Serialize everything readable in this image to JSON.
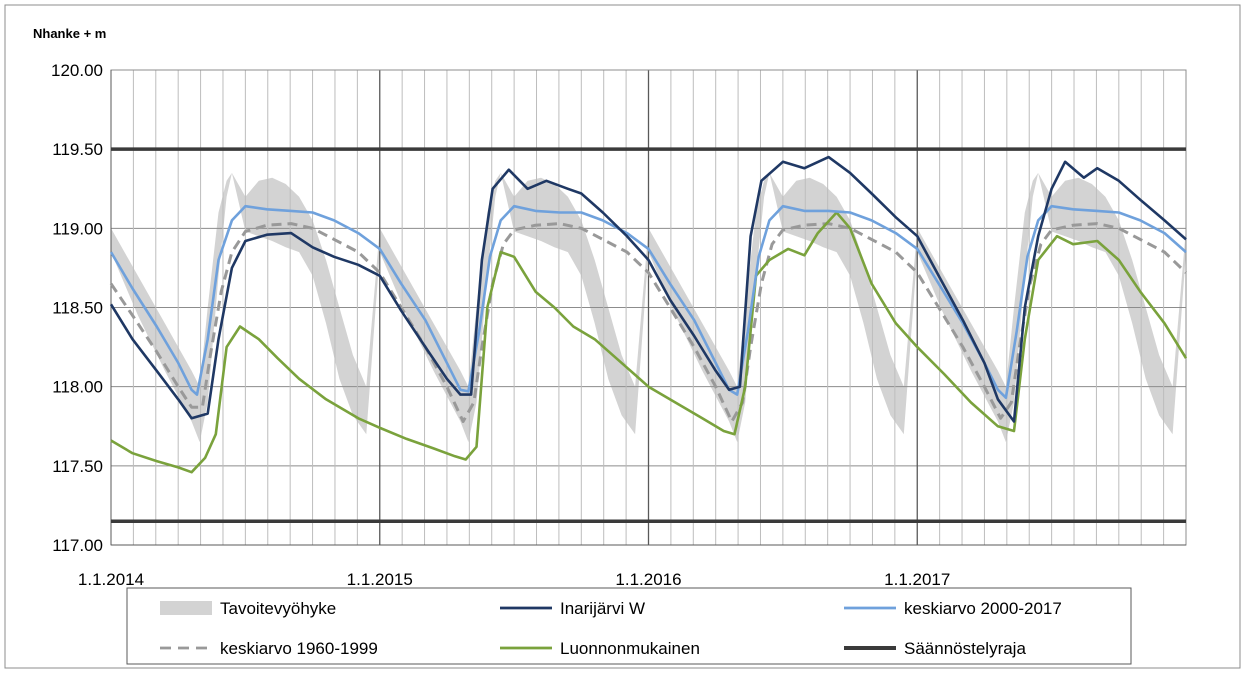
{
  "chart_data": {
    "type": "line",
    "ylabel": "Nhanke + m",
    "ylim": [
      117.0,
      120.0
    ],
    "yticks": [
      "117.00",
      "117.50",
      "118.00",
      "118.50",
      "119.00",
      "119.50",
      "120.00"
    ],
    "xlim": [
      "2014-01-01",
      "2018-01-01"
    ],
    "xticks": [
      "1.1.2014",
      "1.1.2015",
      "1.1.2016",
      "1.1.2017"
    ],
    "grid": {
      "monthly_vertical": true,
      "yearly_vertical": true,
      "horizontal": true
    },
    "legend_position": "bottom",
    "band": {
      "name": "Tavoitevyöhyke",
      "color": "#d3d3d3",
      "lower": [
        [
          0.0,
          118.85
        ],
        [
          0.1,
          118.45
        ],
        [
          0.2,
          118.1
        ],
        [
          0.3,
          117.78
        ],
        [
          0.33,
          117.65
        ],
        [
          0.36,
          117.9
        ],
        [
          0.4,
          118.7
        ],
        [
          0.43,
          119.2
        ],
        [
          0.45,
          119.35
        ],
        [
          0.5,
          118.98
        ],
        [
          0.55,
          118.95
        ],
        [
          0.6,
          118.92
        ],
        [
          0.65,
          118.88
        ],
        [
          0.7,
          118.85
        ],
        [
          0.75,
          118.7
        ],
        [
          0.8,
          118.4
        ],
        [
          0.85,
          118.05
        ],
        [
          0.9,
          117.82
        ],
        [
          0.95,
          117.7
        ],
        [
          1.0,
          118.85
        ]
      ],
      "upper": [
        [
          0.0,
          119.0
        ],
        [
          0.1,
          118.7
        ],
        [
          0.2,
          118.4
        ],
        [
          0.3,
          118.1
        ],
        [
          0.33,
          118.0
        ],
        [
          0.36,
          118.5
        ],
        [
          0.4,
          119.1
        ],
        [
          0.43,
          119.3
        ],
        [
          0.45,
          119.35
        ],
        [
          0.5,
          119.2
        ],
        [
          0.55,
          119.3
        ],
        [
          0.6,
          119.32
        ],
        [
          0.65,
          119.28
        ],
        [
          0.7,
          119.2
        ],
        [
          0.75,
          119.05
        ],
        [
          0.8,
          118.8
        ],
        [
          0.85,
          118.5
        ],
        [
          0.9,
          118.2
        ],
        [
          0.95,
          118.0
        ],
        [
          1.0,
          119.0
        ]
      ]
    },
    "series": [
      {
        "name": "Inarijärvi W",
        "color": "#1f3864",
        "points": [
          [
            2014.0,
            118.52
          ],
          [
            2014.08,
            118.3
          ],
          [
            2014.17,
            118.1
          ],
          [
            2014.25,
            117.92
          ],
          [
            2014.3,
            117.8
          ],
          [
            2014.36,
            117.83
          ],
          [
            2014.4,
            118.3
          ],
          [
            2014.45,
            118.75
          ],
          [
            2014.5,
            118.92
          ],
          [
            2014.58,
            118.96
          ],
          [
            2014.67,
            118.97
          ],
          [
            2014.75,
            118.88
          ],
          [
            2014.83,
            118.82
          ],
          [
            2014.92,
            118.77
          ],
          [
            2015.0,
            118.7
          ],
          [
            2015.08,
            118.48
          ],
          [
            2015.17,
            118.25
          ],
          [
            2015.25,
            118.05
          ],
          [
            2015.3,
            117.95
          ],
          [
            2015.34,
            117.95
          ],
          [
            2015.38,
            118.8
          ],
          [
            2015.42,
            119.25
          ],
          [
            2015.48,
            119.37
          ],
          [
            2015.55,
            119.25
          ],
          [
            2015.62,
            119.3
          ],
          [
            2015.7,
            119.25
          ],
          [
            2015.75,
            119.22
          ],
          [
            2015.83,
            119.1
          ],
          [
            2015.92,
            118.95
          ],
          [
            2016.0,
            118.8
          ],
          [
            2016.08,
            118.55
          ],
          [
            2016.17,
            118.32
          ],
          [
            2016.25,
            118.1
          ],
          [
            2016.3,
            117.98
          ],
          [
            2016.34,
            118.0
          ],
          [
            2016.38,
            118.95
          ],
          [
            2016.42,
            119.3
          ],
          [
            2016.5,
            119.42
          ],
          [
            2016.58,
            119.38
          ],
          [
            2016.67,
            119.45
          ],
          [
            2016.75,
            119.35
          ],
          [
            2016.83,
            119.22
          ],
          [
            2016.92,
            119.07
          ],
          [
            2017.0,
            118.95
          ],
          [
            2017.08,
            118.7
          ],
          [
            2017.17,
            118.42
          ],
          [
            2017.25,
            118.15
          ],
          [
            2017.3,
            117.92
          ],
          [
            2017.36,
            117.78
          ],
          [
            2017.4,
            118.5
          ],
          [
            2017.45,
            118.95
          ],
          [
            2017.5,
            119.25
          ],
          [
            2017.55,
            119.42
          ],
          [
            2017.62,
            119.32
          ],
          [
            2017.67,
            119.38
          ],
          [
            2017.75,
            119.3
          ],
          [
            2017.83,
            119.18
          ],
          [
            2017.92,
            119.05
          ],
          [
            2018.0,
            118.93
          ]
        ]
      },
      {
        "name": "keskiarvo 2000-2017",
        "color": "#6fa1dc",
        "points": [
          [
            2014.0,
            118.85
          ],
          [
            2014.08,
            118.62
          ],
          [
            2014.17,
            118.38
          ],
          [
            2014.25,
            118.15
          ],
          [
            2014.3,
            117.98
          ],
          [
            2014.32,
            117.95
          ],
          [
            2014.36,
            118.3
          ],
          [
            2014.4,
            118.8
          ],
          [
            2014.45,
            119.05
          ],
          [
            2014.5,
            119.14
          ],
          [
            2014.58,
            119.12
          ],
          [
            2014.67,
            119.11
          ],
          [
            2014.75,
            119.1
          ],
          [
            2014.83,
            119.05
          ],
          [
            2014.92,
            118.97
          ],
          [
            2015.0,
            118.87
          ],
          [
            2015.08,
            118.65
          ],
          [
            2015.17,
            118.42
          ],
          [
            2015.25,
            118.15
          ],
          [
            2015.3,
            117.98
          ],
          [
            2015.33,
            117.97
          ],
          [
            2015.37,
            118.35
          ],
          [
            2015.41,
            118.82
          ],
          [
            2015.45,
            119.05
          ],
          [
            2015.5,
            119.14
          ],
          [
            2015.58,
            119.11
          ],
          [
            2015.67,
            119.1
          ],
          [
            2015.75,
            119.1
          ],
          [
            2015.83,
            119.05
          ],
          [
            2015.92,
            118.97
          ],
          [
            2016.0,
            118.87
          ],
          [
            2016.08,
            118.65
          ],
          [
            2016.17,
            118.42
          ],
          [
            2016.25,
            118.15
          ],
          [
            2016.3,
            117.98
          ],
          [
            2016.33,
            117.95
          ],
          [
            2016.37,
            118.35
          ],
          [
            2016.41,
            118.82
          ],
          [
            2016.45,
            119.05
          ],
          [
            2016.5,
            119.14
          ],
          [
            2016.58,
            119.11
          ],
          [
            2016.67,
            119.11
          ],
          [
            2016.75,
            119.1
          ],
          [
            2016.83,
            119.05
          ],
          [
            2016.92,
            118.97
          ],
          [
            2017.0,
            118.87
          ],
          [
            2017.08,
            118.65
          ],
          [
            2017.17,
            118.4
          ],
          [
            2017.25,
            118.15
          ],
          [
            2017.3,
            117.98
          ],
          [
            2017.33,
            117.93
          ],
          [
            2017.37,
            118.35
          ],
          [
            2017.41,
            118.82
          ],
          [
            2017.45,
            119.05
          ],
          [
            2017.5,
            119.14
          ],
          [
            2017.58,
            119.12
          ],
          [
            2017.67,
            119.11
          ],
          [
            2017.75,
            119.1
          ],
          [
            2017.83,
            119.05
          ],
          [
            2017.92,
            118.97
          ],
          [
            2018.0,
            118.85
          ]
        ]
      },
      {
        "name": "keskiarvo 1960-1999",
        "color": "#999999",
        "dashed": true,
        "points": [
          [
            2014.0,
            118.65
          ],
          [
            2014.08,
            118.45
          ],
          [
            2014.17,
            118.22
          ],
          [
            2014.25,
            118.0
          ],
          [
            2014.3,
            117.87
          ],
          [
            2014.34,
            117.87
          ],
          [
            2014.37,
            118.2
          ],
          [
            2014.41,
            118.6
          ],
          [
            2014.45,
            118.85
          ],
          [
            2014.5,
            118.98
          ],
          [
            2014.58,
            119.02
          ],
          [
            2014.67,
            119.03
          ],
          [
            2014.75,
            119.0
          ],
          [
            2014.83,
            118.93
          ],
          [
            2014.92,
            118.85
          ],
          [
            2015.0,
            118.72
          ],
          [
            2015.08,
            118.5
          ],
          [
            2015.17,
            118.25
          ],
          [
            2015.25,
            118.0
          ],
          [
            2015.31,
            117.78
          ],
          [
            2015.35,
            117.9
          ],
          [
            2015.38,
            118.25
          ],
          [
            2015.42,
            118.65
          ],
          [
            2015.46,
            118.9
          ],
          [
            2015.5,
            118.99
          ],
          [
            2015.58,
            119.02
          ],
          [
            2015.67,
            119.03
          ],
          [
            2015.75,
            119.0
          ],
          [
            2015.83,
            118.93
          ],
          [
            2015.92,
            118.85
          ],
          [
            2016.0,
            118.72
          ],
          [
            2016.08,
            118.5
          ],
          [
            2016.17,
            118.25
          ],
          [
            2016.25,
            118.0
          ],
          [
            2016.31,
            117.78
          ],
          [
            2016.35,
            117.9
          ],
          [
            2016.38,
            118.25
          ],
          [
            2016.42,
            118.65
          ],
          [
            2016.46,
            118.9
          ],
          [
            2016.5,
            118.99
          ],
          [
            2016.58,
            119.02
          ],
          [
            2016.67,
            119.03
          ],
          [
            2016.75,
            119.0
          ],
          [
            2016.83,
            118.93
          ],
          [
            2016.92,
            118.85
          ],
          [
            2017.0,
            118.72
          ],
          [
            2017.08,
            118.5
          ],
          [
            2017.17,
            118.25
          ],
          [
            2017.25,
            118.0
          ],
          [
            2017.31,
            117.8
          ],
          [
            2017.35,
            117.9
          ],
          [
            2017.38,
            118.25
          ],
          [
            2017.42,
            118.65
          ],
          [
            2017.46,
            118.9
          ],
          [
            2017.5,
            118.99
          ],
          [
            2017.58,
            119.02
          ],
          [
            2017.67,
            119.03
          ],
          [
            2017.75,
            119.0
          ],
          [
            2017.83,
            118.93
          ],
          [
            2017.92,
            118.85
          ],
          [
            2018.0,
            118.72
          ]
        ]
      },
      {
        "name": "Luonnonmukainen",
        "color": "#7aa23c",
        "points": [
          [
            2014.0,
            117.66
          ],
          [
            2014.08,
            117.58
          ],
          [
            2014.17,
            117.53
          ],
          [
            2014.25,
            117.49
          ],
          [
            2014.3,
            117.46
          ],
          [
            2014.35,
            117.55
          ],
          [
            2014.39,
            117.7
          ],
          [
            2014.43,
            118.25
          ],
          [
            2014.48,
            118.38
          ],
          [
            2014.55,
            118.3
          ],
          [
            2014.62,
            118.18
          ],
          [
            2014.7,
            118.05
          ],
          [
            2014.8,
            117.92
          ],
          [
            2014.92,
            117.8
          ],
          [
            2015.0,
            117.74
          ],
          [
            2015.1,
            117.67
          ],
          [
            2015.2,
            117.61
          ],
          [
            2015.28,
            117.56
          ],
          [
            2015.32,
            117.54
          ],
          [
            2015.36,
            117.62
          ],
          [
            2015.4,
            118.5
          ],
          [
            2015.45,
            118.85
          ],
          [
            2015.5,
            118.82
          ],
          [
            2015.58,
            118.6
          ],
          [
            2015.65,
            118.5
          ],
          [
            2015.72,
            118.38
          ],
          [
            2015.8,
            118.3
          ],
          [
            2015.92,
            118.12
          ],
          [
            2016.0,
            118.0
          ],
          [
            2016.1,
            117.9
          ],
          [
            2016.2,
            117.8
          ],
          [
            2016.28,
            117.72
          ],
          [
            2016.32,
            117.7
          ],
          [
            2016.36,
            118.0
          ],
          [
            2016.4,
            118.7
          ],
          [
            2016.45,
            118.8
          ],
          [
            2016.52,
            118.87
          ],
          [
            2016.58,
            118.83
          ],
          [
            2016.63,
            118.97
          ],
          [
            2016.7,
            119.1
          ],
          [
            2016.75,
            119.0
          ],
          [
            2016.83,
            118.65
          ],
          [
            2016.92,
            118.4
          ],
          [
            2017.0,
            118.25
          ],
          [
            2017.1,
            118.08
          ],
          [
            2017.2,
            117.9
          ],
          [
            2017.3,
            117.75
          ],
          [
            2017.36,
            117.72
          ],
          [
            2017.4,
            118.3
          ],
          [
            2017.45,
            118.8
          ],
          [
            2017.52,
            118.95
          ],
          [
            2017.58,
            118.9
          ],
          [
            2017.67,
            118.92
          ],
          [
            2017.75,
            118.8
          ],
          [
            2017.83,
            118.6
          ],
          [
            2017.92,
            118.4
          ],
          [
            2018.0,
            118.18
          ]
        ]
      },
      {
        "name": "Säännöstelyraja",
        "color": "#3a3a3a",
        "hlines": [
          117.15,
          119.5
        ]
      }
    ]
  }
}
